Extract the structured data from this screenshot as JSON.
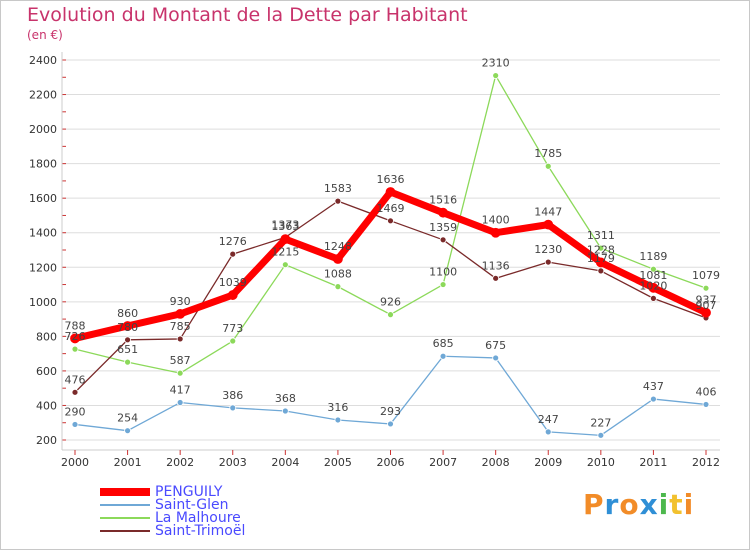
{
  "header": {
    "title": "Evolution du Montant de la Dette par Habitant",
    "unit": "(en €)"
  },
  "logo": {
    "text": "Proxiti",
    "letters": [
      "P",
      "r",
      "o",
      "x",
      "i",
      "t",
      "i"
    ],
    "colors": [
      "#f28c28",
      "#2f8fd6",
      "#f28c28",
      "#2f8fd6",
      "#4db84d",
      "#f2c12e",
      "#f28c28"
    ]
  },
  "colors": {
    "title": "#c8336b",
    "axis_tick": "#cc3333",
    "grid": "#dddddd"
  },
  "chart_data": {
    "type": "line",
    "title": "Evolution du Montant de la Dette par Habitant",
    "ylabel": "(en €)",
    "xlabel": "",
    "x": [
      "2000",
      "2001",
      "2002",
      "2003",
      "2004",
      "2005",
      "2006",
      "2007",
      "2008",
      "2009",
      "2010",
      "2011",
      "2012"
    ],
    "ylim": [
      200,
      2400
    ],
    "yticks": [
      200,
      400,
      600,
      800,
      1000,
      1200,
      1400,
      1600,
      1800,
      2000,
      2200,
      2400
    ],
    "grid": true,
    "legend": "bottom-left",
    "series": [
      {
        "name": "PENGUILY",
        "color": "#ff0000",
        "values": [
          788,
          860,
          930,
          1039,
          1363,
          1248,
          1636,
          1516,
          1400,
          1447,
          1228,
          1081,
          937
        ]
      },
      {
        "name": "Saint-Glen",
        "color": "#6fa8d6",
        "values": [
          290,
          254,
          417,
          386,
          368,
          316,
          293,
          685,
          675,
          247,
          227,
          437,
          406
        ]
      },
      {
        "name": "La Malhoure",
        "color": "#8cd95a",
        "values": [
          726,
          651,
          587,
          773,
          1215,
          1088,
          926,
          1100,
          2310,
          1785,
          1311,
          1189,
          1079
        ]
      },
      {
        "name": "Saint-Trimoël",
        "color": "#7a2a2a",
        "values": [
          476,
          780,
          785,
          1276,
          1373,
          1583,
          1469,
          1359,
          1136,
          1230,
          1179,
          1020,
          907
        ]
      }
    ]
  }
}
